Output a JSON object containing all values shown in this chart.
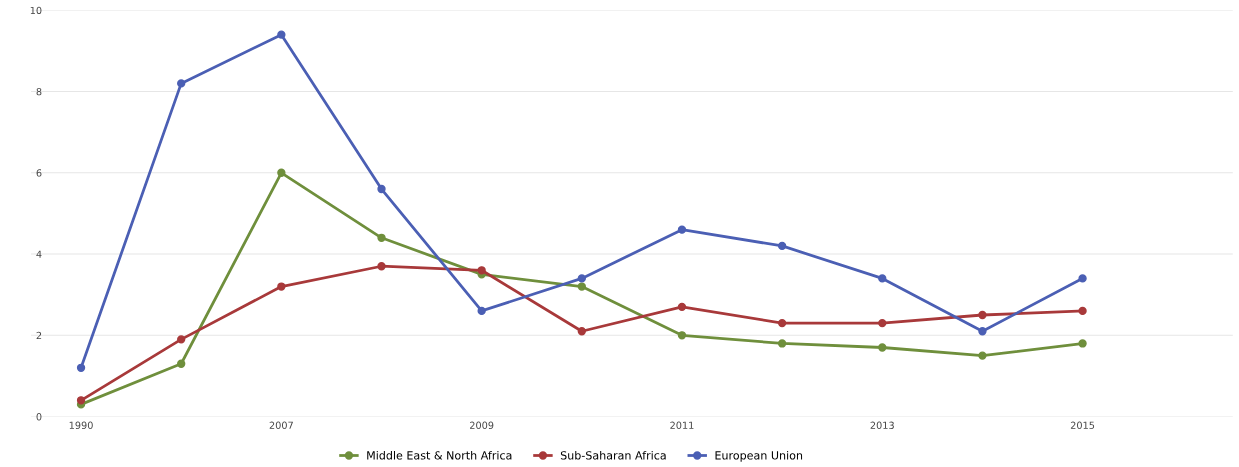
{
  "chart_data": {
    "type": "line",
    "categories": [
      "1990",
      null,
      "2007",
      null,
      "2009",
      null,
      "2011",
      null,
      "2013",
      null,
      "2015"
    ],
    "series": [
      {
        "name": "Middle East & North Africa",
        "color": "#6f8f3c",
        "values": [
          0.3,
          1.3,
          6.0,
          4.4,
          3.5,
          3.2,
          2.0,
          1.8,
          1.7,
          1.5,
          1.8
        ]
      },
      {
        "name": "Sub-Saharan Africa",
        "color": "#a8393a",
        "values": [
          0.4,
          1.9,
          3.2,
          3.7,
          3.6,
          2.1,
          2.7,
          2.3,
          2.3,
          2.5,
          2.6
        ]
      },
      {
        "name": "European Union",
        "color": "#4b5fb4",
        "values": [
          1.2,
          8.2,
          9.4,
          5.6,
          2.6,
          3.4,
          4.6,
          4.2,
          3.4,
          2.1,
          3.4
        ]
      }
    ],
    "ylim": [
      0,
      10
    ],
    "yticks": [
      0,
      2,
      4,
      6,
      8,
      10
    ],
    "grid": "y",
    "legend": "bottom",
    "marker": "circle",
    "line_style": "solid"
  }
}
